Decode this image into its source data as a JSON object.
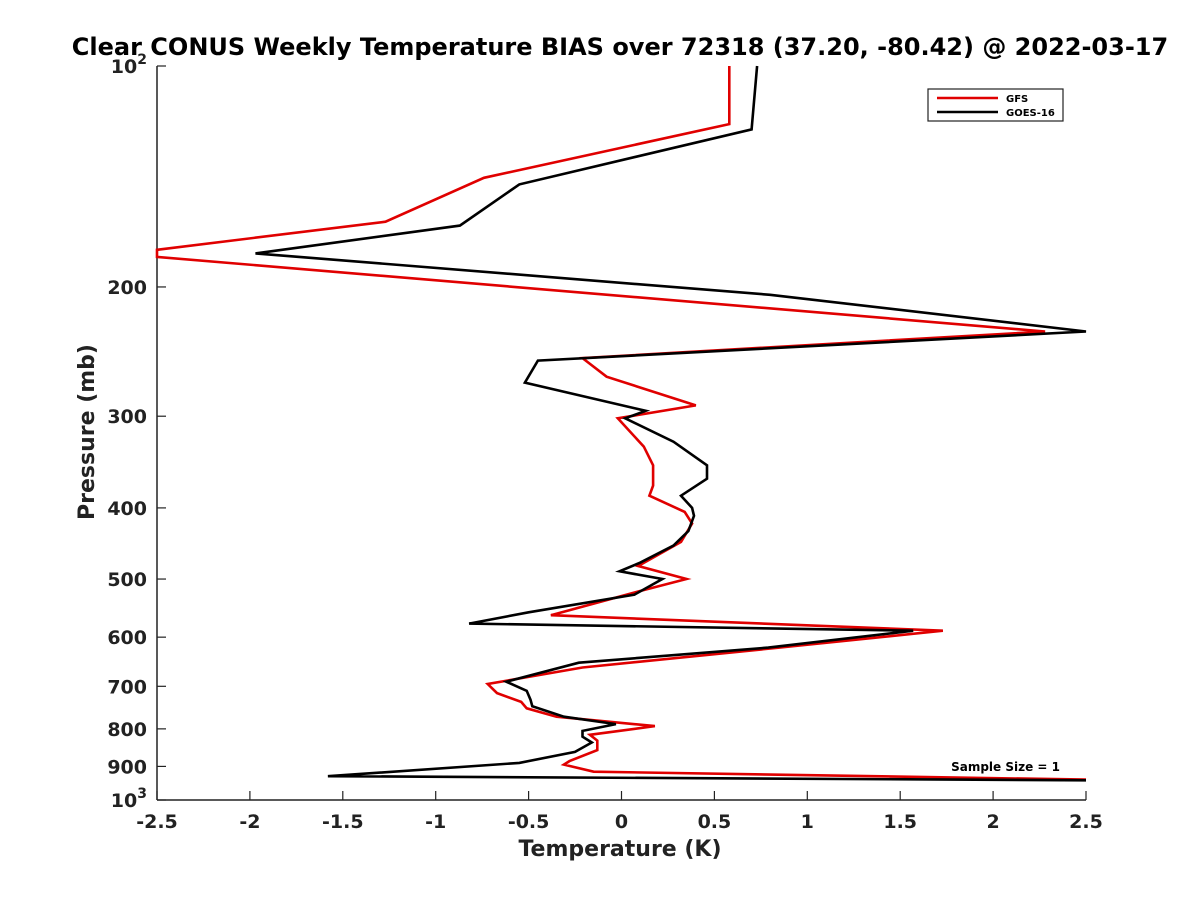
{
  "chart_data": {
    "type": "line",
    "title": "Clear CONUS Weekly Temperature BIAS over 72318 (37.20, -80.42) @ 2022-03-17",
    "xlabel": "Temperature (K)",
    "ylabel": "Pressure (mb)",
    "xlim": [
      -2.5,
      2.5
    ],
    "ylim": [
      100,
      1000
    ],
    "y_scale": "log",
    "y_reversed": true,
    "x_ticks": [
      "-2.5",
      "-2",
      "-1.5",
      "-1",
      "-0.5",
      "0",
      "0.5",
      "1",
      "1.5",
      "2",
      "2.5"
    ],
    "x_tick_values": [
      -2.5,
      -2,
      -1.5,
      -1,
      -0.5,
      0,
      0.5,
      1,
      1.5,
      2,
      2.5
    ],
    "y_ticks": [
      {
        "value": 100,
        "base": "10",
        "exp": "2"
      },
      {
        "value": 200,
        "label": "200"
      },
      {
        "value": 300,
        "label": "300"
      },
      {
        "value": 400,
        "label": "400"
      },
      {
        "value": 500,
        "label": "500"
      },
      {
        "value": 600,
        "label": "600"
      },
      {
        "value": 700,
        "label": "700"
      },
      {
        "value": 800,
        "label": "800"
      },
      {
        "value": 900,
        "label": "900"
      },
      {
        "value": 1000,
        "base": "10",
        "exp": "3"
      }
    ],
    "grid": false,
    "legend_position": "top-right",
    "annotation": "Sample Size = 1",
    "series": [
      {
        "name": "GFS",
        "color": "#e00000",
        "points": [
          [
            0.58,
            100
          ],
          [
            0.58,
            120
          ],
          [
            -0.74,
            142
          ],
          [
            -1.27,
            163
          ],
          [
            -2.5,
            178
          ],
          [
            -2.5,
            182
          ],
          [
            2.28,
            230
          ],
          [
            -0.21,
            250
          ],
          [
            -0.08,
            265
          ],
          [
            0.4,
            290
          ],
          [
            -0.02,
            302
          ],
          [
            0.12,
            330
          ],
          [
            0.17,
            350
          ],
          [
            0.17,
            373
          ],
          [
            0.15,
            385
          ],
          [
            0.34,
            405
          ],
          [
            0.38,
            420
          ],
          [
            0.32,
            445
          ],
          [
            0.09,
            480
          ],
          [
            0.35,
            500
          ],
          [
            0.09,
            520
          ],
          [
            -0.38,
            560
          ],
          [
            1.73,
            588
          ],
          [
            0.85,
            620
          ],
          [
            -0.21,
            660
          ],
          [
            -0.72,
            695
          ],
          [
            -0.67,
            715
          ],
          [
            -0.54,
            735
          ],
          [
            -0.51,
            750
          ],
          [
            -0.35,
            770
          ],
          [
            0.18,
            793
          ],
          [
            -0.17,
            815
          ],
          [
            -0.13,
            830
          ],
          [
            -0.13,
            855
          ],
          [
            -0.28,
            885
          ],
          [
            -0.31,
            895
          ],
          [
            -0.15,
            915
          ],
          [
            2.5,
            938
          ]
        ]
      },
      {
        "name": "GOES-16",
        "color": "#000000",
        "points": [
          [
            0.73,
            100
          ],
          [
            0.7,
            122
          ],
          [
            -0.55,
            145
          ],
          [
            -0.87,
            165
          ],
          [
            -1.97,
            180
          ],
          [
            0.8,
            205
          ],
          [
            2.5,
            230
          ],
          [
            -0.45,
            252
          ],
          [
            -0.52,
            270
          ],
          [
            0.13,
            295
          ],
          [
            0.02,
            302
          ],
          [
            0.28,
            325
          ],
          [
            0.46,
            350
          ],
          [
            0.46,
            365
          ],
          [
            0.32,
            385
          ],
          [
            0.38,
            400
          ],
          [
            0.39,
            410
          ],
          [
            0.36,
            430
          ],
          [
            0.28,
            450
          ],
          [
            0.1,
            475
          ],
          [
            -0.01,
            488
          ],
          [
            0.22,
            500
          ],
          [
            0.07,
            525
          ],
          [
            -0.5,
            555
          ],
          [
            -0.82,
            575
          ],
          [
            1.57,
            588
          ],
          [
            0.79,
            620
          ],
          [
            -0.23,
            650
          ],
          [
            -0.62,
            690
          ],
          [
            -0.51,
            710
          ],
          [
            -0.49,
            730
          ],
          [
            -0.48,
            745
          ],
          [
            -0.31,
            770
          ],
          [
            -0.03,
            788
          ],
          [
            -0.21,
            805
          ],
          [
            -0.21,
            820
          ],
          [
            -0.16,
            835
          ],
          [
            -0.25,
            860
          ],
          [
            -0.55,
            890
          ],
          [
            -1.58,
            928
          ],
          [
            2.5,
            940
          ]
        ]
      }
    ]
  }
}
